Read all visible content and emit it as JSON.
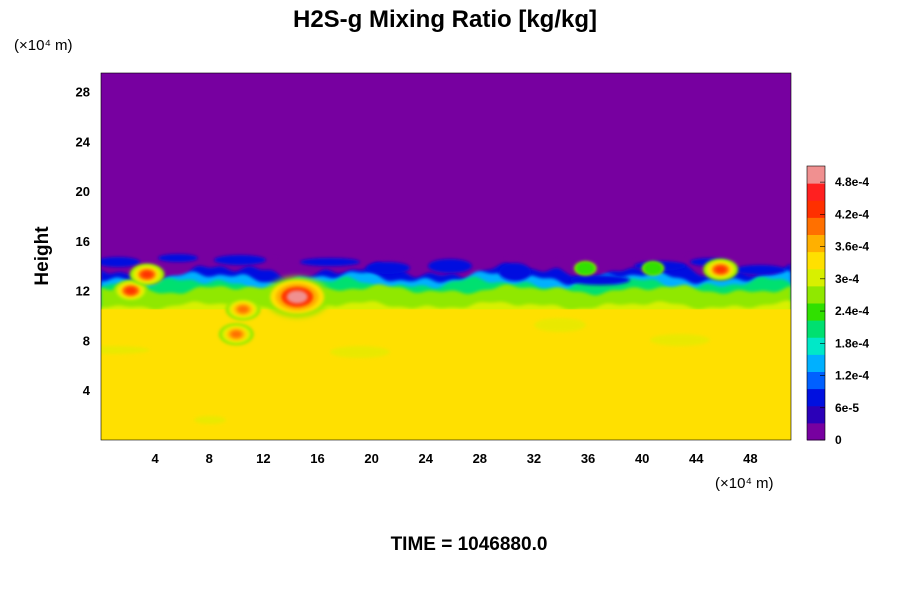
{
  "chart_data": {
    "type": "heatmap",
    "title": "H2S-g Mixing Ratio [kg/kg]",
    "ylabel": "Height",
    "y_unit_label": "(×10⁴ m)",
    "x_unit_label": "(×10⁴ m)",
    "x_ticks": [
      4,
      8,
      12,
      16,
      20,
      24,
      28,
      32,
      36,
      40,
      44,
      48
    ],
    "y_ticks": [
      4,
      8,
      12,
      16,
      20,
      24,
      28
    ],
    "xlim": [
      0,
      51
    ],
    "ylim": [
      0,
      29.5
    ],
    "grid": false,
    "colorbar": {
      "placement": "right",
      "labels": [
        "0",
        "6e-5",
        "1.2e-4",
        "1.8e-4",
        "2.4e-4",
        "3e-4",
        "3.6e-4",
        "4.2e-4",
        "4.8e-4"
      ],
      "label_values": [
        0,
        6e-05,
        0.00012,
        0.00018,
        0.00024,
        0.0003,
        0.00036,
        0.00042,
        0.00048
      ],
      "range": [
        0,
        0.00051
      ],
      "colors": [
        "#7700a0",
        "#2b00b8",
        "#0010e0",
        "#0060ff",
        "#00b0ff",
        "#00e8c8",
        "#00e070",
        "#30e000",
        "#90e800",
        "#d8f000",
        "#ffe000",
        "#ffb000",
        "#ff7000",
        "#ff3000",
        "#ff2020",
        "#f09090"
      ]
    },
    "field": {
      "background_value": 0,
      "lower_layer_value": 0.00034,
      "lower_layer_top": 10.5,
      "mixing_band_top": 14.5,
      "features": [
        {
          "x": 14.5,
          "y": 11.5,
          "value": 0.0005
        },
        {
          "x": 10.5,
          "y": 10.5,
          "value": 0.00039
        },
        {
          "x": 10,
          "y": 8.5,
          "value": 0.00039
        },
        {
          "x": 2.2,
          "y": 12,
          "value": 0.00044
        },
        {
          "x": 45.8,
          "y": 13.7,
          "value": 0.00043
        },
        {
          "x": 3.4,
          "y": 13.3,
          "value": 0.00044
        },
        {
          "x": 35.8,
          "y": 13.8,
          "value": 0.00024
        },
        {
          "x": 40.8,
          "y": 13.8,
          "value": 0.00024
        }
      ]
    }
  },
  "footer": {
    "time_label": "TIME = 1046880.0"
  }
}
